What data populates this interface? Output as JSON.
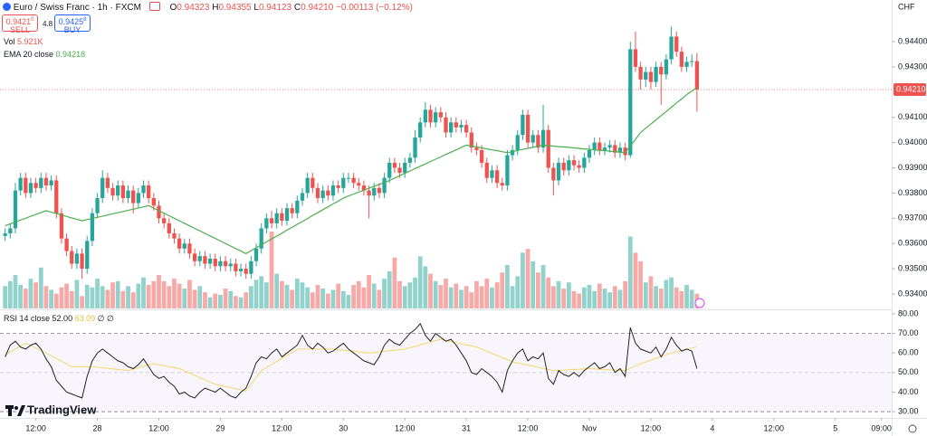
{
  "chart_data": {
    "type": "candlestick",
    "title": "Euro / Swiss Franc · 1h · FXCM",
    "currency": "CHF",
    "ohlc_legend": [
      {
        "key": "O",
        "value": "0.94323"
      },
      {
        "key": "H",
        "value": "0.94355"
      },
      {
        "key": "L",
        "value": "0.94123"
      },
      {
        "key": "C",
        "value": "0.94210"
      }
    ],
    "change_label": "−0.00113 (−0.12%)",
    "up_color": "#26a69a",
    "down_color": "#ef5350",
    "xlim": [
      -1,
      173
    ],
    "xticks": [
      {
        "value": 6,
        "label": "12:00"
      },
      {
        "value": 18,
        "label": "28"
      },
      {
        "value": 30,
        "label": "12:00"
      },
      {
        "value": 42,
        "label": "29"
      },
      {
        "value": 54,
        "label": "12:00"
      },
      {
        "value": 66,
        "label": "30"
      },
      {
        "value": 78,
        "label": "12:00"
      },
      {
        "value": 90,
        "label": "31"
      },
      {
        "value": 102,
        "label": "12:00"
      },
      {
        "value": 114,
        "label": "Nov"
      },
      {
        "value": 126,
        "label": "12:00"
      },
      {
        "value": 138,
        "label": "4"
      },
      {
        "value": 150,
        "label": "12:00"
      },
      {
        "value": 162,
        "label": "5"
      },
      {
        "value": 171,
        "label": "09:00"
      }
    ],
    "ylim": [
      0.93339,
      0.94565
    ],
    "yticks": [
      {
        "value": 0.934,
        "label": "0.93400"
      },
      {
        "value": 0.935,
        "label": "0.93500"
      },
      {
        "value": 0.936,
        "label": "0.93600"
      },
      {
        "value": 0.937,
        "label": "0.93700"
      },
      {
        "value": 0.938,
        "label": "0.93800"
      },
      {
        "value": 0.939,
        "label": "0.93900"
      },
      {
        "value": 0.94,
        "label": "0.94000"
      },
      {
        "value": 0.941,
        "label": "0.94100"
      },
      {
        "value": 0.943,
        "label": "0.94300"
      },
      {
        "value": 0.944,
        "label": "0.94400"
      }
    ],
    "open": [
      0.9363,
      0.9364,
      0.9366,
      0.9381,
      0.9386,
      0.938,
      0.9384,
      0.9382,
      0.9386,
      0.9383,
      0.9385,
      0.9372,
      0.9362,
      0.9357,
      0.9352,
      0.9356,
      0.935,
      0.9361,
      0.9372,
      0.9378,
      0.9386,
      0.9382,
      0.9379,
      0.9383,
      0.9378,
      0.9381,
      0.9376,
      0.938,
      0.9383,
      0.9378,
      0.9375,
      0.937,
      0.9368,
      0.9364,
      0.9362,
      0.9358,
      0.936,
      0.9356,
      0.9353,
      0.9355,
      0.9352,
      0.9354,
      0.9351,
      0.9353,
      0.9351,
      0.9352,
      0.9349,
      0.935,
      0.9348,
      0.9353,
      0.9358,
      0.9366,
      0.937,
      0.9368,
      0.9372,
      0.9369,
      0.9374,
      0.9372,
      0.9377,
      0.938,
      0.9386,
      0.9382,
      0.9378,
      0.9381,
      0.9379,
      0.9383,
      0.9382,
      0.9386,
      0.9386,
      0.9384,
      0.9383,
      0.9381,
      0.9379,
      0.9382,
      0.938,
      0.9386,
      0.9392,
      0.939,
      0.9388,
      0.9392,
      0.9394,
      0.9402,
      0.9408,
      0.9413,
      0.9408,
      0.9412,
      0.941,
      0.9404,
      0.9408,
      0.9406,
      0.9407,
      0.9404,
      0.9398,
      0.9397,
      0.9392,
      0.9386,
      0.9389,
      0.9384,
      0.9383,
      0.9395,
      0.9397,
      0.9403,
      0.9411,
      0.94,
      0.9403,
      0.9398,
      0.9405,
      0.939,
      0.9385,
      0.9392,
      0.9389,
      0.9393,
      0.9391,
      0.939,
      0.9394,
      0.9397,
      0.94,
      0.9397,
      0.9398,
      0.9399,
      0.9396,
      0.9398,
      0.9395,
      0.9437,
      0.943,
      0.9425,
      0.9428,
      0.9424,
      0.943,
      0.9427,
      0.9433,
      0.9442,
      0.9436,
      0.943,
      0.9432,
      0.94323
    ],
    "high": [
      0.9366,
      0.9368,
      0.9384,
      0.9388,
      0.9388,
      0.9386,
      0.9386,
      0.9388,
      0.9388,
      0.9387,
      0.9387,
      0.9374,
      0.9364,
      0.9359,
      0.9358,
      0.9358,
      0.9363,
      0.9374,
      0.938,
      0.9389,
      0.9388,
      0.9384,
      0.9385,
      0.9385,
      0.9383,
      0.9383,
      0.9382,
      0.9385,
      0.9385,
      0.938,
      0.9377,
      0.9372,
      0.937,
      0.9366,
      0.9364,
      0.9362,
      0.9362,
      0.9358,
      0.9357,
      0.9357,
      0.9356,
      0.9356,
      0.9355,
      0.9355,
      0.9354,
      0.9354,
      0.9352,
      0.9352,
      0.9355,
      0.936,
      0.9368,
      0.9372,
      0.9373,
      0.9374,
      0.9374,
      0.9376,
      0.9376,
      0.9379,
      0.9382,
      0.9388,
      0.9388,
      0.9384,
      0.9383,
      0.9383,
      0.9385,
      0.9385,
      0.9388,
      0.9388,
      0.9388,
      0.9386,
      0.9385,
      0.9383,
      0.9384,
      0.9384,
      0.9388,
      0.9394,
      0.9394,
      0.9392,
      0.9394,
      0.9396,
      0.9405,
      0.941,
      0.9416,
      0.9415,
      0.9414,
      0.9414,
      0.9412,
      0.941,
      0.941,
      0.9409,
      0.9409,
      0.9406,
      0.94,
      0.9399,
      0.9394,
      0.9391,
      0.9391,
      0.9386,
      0.9397,
      0.9399,
      0.9405,
      0.9413,
      0.9413,
      0.9405,
      0.9405,
      0.9415,
      0.9407,
      0.9392,
      0.9394,
      0.9394,
      0.9395,
      0.9395,
      0.9393,
      0.9396,
      0.9399,
      0.9402,
      0.9402,
      0.94,
      0.9401,
      0.9401,
      0.94,
      0.94,
      0.944,
      0.9444,
      0.9432,
      0.943,
      0.943,
      0.9432,
      0.9432,
      0.9435,
      0.9446,
      0.9444,
      0.9438,
      0.9434,
      0.9435,
      0.94355
    ],
    "low": [
      0.9361,
      0.9362,
      0.9364,
      0.9379,
      0.9378,
      0.9378,
      0.938,
      0.938,
      0.9381,
      0.9381,
      0.937,
      0.936,
      0.9355,
      0.935,
      0.935,
      0.9346,
      0.9348,
      0.9359,
      0.937,
      0.9376,
      0.938,
      0.9377,
      0.9377,
      0.9376,
      0.9376,
      0.9372,
      0.9374,
      0.9378,
      0.9376,
      0.9373,
      0.9368,
      0.9366,
      0.9362,
      0.936,
      0.9356,
      0.9356,
      0.9354,
      0.9351,
      0.9351,
      0.935,
      0.935,
      0.9349,
      0.9349,
      0.9349,
      0.9349,
      0.9347,
      0.9347,
      0.9346,
      0.9346,
      0.9351,
      0.9356,
      0.9364,
      0.9366,
      0.9366,
      0.9367,
      0.9367,
      0.937,
      0.937,
      0.9375,
      0.9378,
      0.938,
      0.9376,
      0.9376,
      0.9377,
      0.9377,
      0.938,
      0.938,
      0.9384,
      0.9382,
      0.9381,
      0.9379,
      0.937,
      0.9377,
      0.9378,
      0.9378,
      0.9384,
      0.9388,
      0.9386,
      0.9386,
      0.939,
      0.9392,
      0.94,
      0.9406,
      0.9406,
      0.9406,
      0.9408,
      0.9402,
      0.9402,
      0.9404,
      0.9404,
      0.9402,
      0.9396,
      0.9395,
      0.939,
      0.9384,
      0.9384,
      0.9382,
      0.9381,
      0.9381,
      0.9393,
      0.9395,
      0.9401,
      0.9398,
      0.9398,
      0.9396,
      0.9396,
      0.9388,
      0.9379,
      0.9383,
      0.9387,
      0.9387,
      0.9389,
      0.9388,
      0.9388,
      0.9392,
      0.9395,
      0.9395,
      0.9395,
      0.9396,
      0.9394,
      0.9394,
      0.9393,
      0.9394,
      0.9428,
      0.9421,
      0.9422,
      0.9421,
      0.9422,
      0.9415,
      0.9425,
      0.9431,
      0.9434,
      0.9428,
      0.9428,
      0.943,
      0.94123
    ],
    "close": [
      0.9364,
      0.9366,
      0.9381,
      0.9386,
      0.938,
      0.9384,
      0.9382,
      0.9386,
      0.9383,
      0.9385,
      0.9372,
      0.9362,
      0.9357,
      0.9352,
      0.9356,
      0.935,
      0.9361,
      0.9372,
      0.9378,
      0.9386,
      0.9382,
      0.9379,
      0.9383,
      0.9378,
      0.9381,
      0.9376,
      0.938,
      0.9383,
      0.9378,
      0.9375,
      0.937,
      0.9368,
      0.9364,
      0.9362,
      0.9358,
      0.936,
      0.9356,
      0.9353,
      0.9355,
      0.9352,
      0.9354,
      0.9351,
      0.9353,
      0.9351,
      0.9352,
      0.9349,
      0.935,
      0.9348,
      0.9353,
      0.9358,
      0.9366,
      0.937,
      0.9368,
      0.9372,
      0.9369,
      0.9374,
      0.9372,
      0.9377,
      0.938,
      0.9386,
      0.9382,
      0.9378,
      0.9381,
      0.9379,
      0.9383,
      0.9382,
      0.9386,
      0.9386,
      0.9384,
      0.9383,
      0.9381,
      0.9379,
      0.9382,
      0.938,
      0.9386,
      0.9392,
      0.939,
      0.9388,
      0.9392,
      0.9394,
      0.9402,
      0.9408,
      0.9413,
      0.9408,
      0.9412,
      0.941,
      0.9404,
      0.9408,
      0.9406,
      0.9407,
      0.9404,
      0.9398,
      0.9397,
      0.9392,
      0.9386,
      0.9389,
      0.9384,
      0.9383,
      0.9395,
      0.9397,
      0.9403,
      0.9411,
      0.94,
      0.9403,
      0.9398,
      0.9405,
      0.939,
      0.9385,
      0.9392,
      0.9389,
      0.9393,
      0.9391,
      0.939,
      0.9394,
      0.9397,
      0.94,
      0.9397,
      0.9398,
      0.9399,
      0.9396,
      0.9398,
      0.9395,
      0.9437,
      0.943,
      0.9425,
      0.9428,
      0.9424,
      0.943,
      0.9427,
      0.9433,
      0.9442,
      0.9436,
      0.943,
      0.9432,
      0.94323,
      0.9421
    ],
    "volume": {
      "name": "Vol",
      "last_value_label": "5.921K",
      "up_color": "rgba(38,166,154,0.5)",
      "down_color": "rgba(239,83,80,0.5)",
      "values": [
        9000,
        11000,
        13500,
        9500,
        8000,
        12000,
        10500,
        16500,
        9000,
        7500,
        6000,
        8500,
        10000,
        7000,
        11500,
        5000,
        9500,
        8500,
        12000,
        9000,
        7500,
        10500,
        11000,
        7000,
        9000,
        6500,
        10000,
        12500,
        9500,
        11000,
        13500,
        11000,
        9000,
        12000,
        10000,
        8000,
        11500,
        7500,
        9000,
        6500,
        4500,
        6000,
        5500,
        8000,
        7000,
        5000,
        4500,
        6500,
        9000,
        11500,
        13000,
        10500,
        31000,
        14000,
        11000,
        9500,
        7500,
        12000,
        10500,
        8500,
        6500,
        9500,
        8000,
        6000,
        7500,
        10000,
        7000,
        5500,
        9500,
        11000,
        8500,
        13500,
        10000,
        7500,
        12000,
        15000,
        20500,
        11000,
        9000,
        10500,
        12500,
        21000,
        17000,
        14000,
        11000,
        9500,
        12000,
        8500,
        10000,
        7500,
        9000,
        6500,
        11000,
        9000,
        12000,
        8500,
        10500,
        14500,
        17500,
        9000,
        13000,
        22500,
        24000,
        19000,
        14500,
        17500,
        12500,
        9000,
        11000,
        8000,
        10500,
        7000,
        6000,
        8500,
        9500,
        7000,
        10000,
        8000,
        6500,
        9000,
        7500,
        11000,
        29000,
        22500,
        19000,
        10500,
        13000,
        9000,
        8000,
        11500,
        12500,
        8500,
        7000,
        9500,
        7500,
        5921
      ]
    },
    "ema": {
      "name": "EMA 20 close",
      "last_value_label": "0.94218",
      "color": "#4caf50",
      "values": [
        0.9367,
        0.93678,
        0.93685,
        0.93693,
        0.937,
        0.93708,
        0.93715,
        0.93723,
        0.9373,
        0.93724,
        0.93719,
        0.93713,
        0.93707,
        0.93701,
        0.93696,
        0.9369,
        0.93695,
        0.93699,
        0.93704,
        0.93708,
        0.93713,
        0.93718,
        0.93722,
        0.93727,
        0.93732,
        0.93736,
        0.93741,
        0.93745,
        0.9375,
        0.9374,
        0.9373,
        0.9372,
        0.9371,
        0.937,
        0.9369,
        0.9368,
        0.9367,
        0.9366,
        0.9365,
        0.9364,
        0.9363,
        0.9362,
        0.9361,
        0.936,
        0.9359,
        0.9358,
        0.9357,
        0.9356,
        0.93572,
        0.93583,
        0.93595,
        0.93606,
        0.93618,
        0.93629,
        0.93641,
        0.93653,
        0.93664,
        0.93676,
        0.93687,
        0.93699,
        0.93711,
        0.93722,
        0.93734,
        0.93745,
        0.93757,
        0.93768,
        0.9378,
        0.93788,
        0.93796,
        0.93804,
        0.93811,
        0.93819,
        0.93827,
        0.93834,
        0.93842,
        0.9385,
        0.93859,
        0.93869,
        0.93878,
        0.93887,
        0.93897,
        0.93906,
        0.93915,
        0.93925,
        0.93934,
        0.93943,
        0.93953,
        0.93962,
        0.93971,
        0.93981,
        0.9399,
        0.93986,
        0.93983,
        0.93979,
        0.93975,
        0.93971,
        0.93968,
        0.93964,
        0.9396,
        0.93964,
        0.93969,
        0.93973,
        0.93977,
        0.93981,
        0.93986,
        0.9399,
        0.93988,
        0.93986,
        0.93984,
        0.93983,
        0.93981,
        0.93979,
        0.93977,
        0.93975,
        0.93973,
        0.93971,
        0.93969,
        0.93968,
        0.93966,
        0.93964,
        0.93962,
        0.9396,
        0.93987,
        0.94013,
        0.9404,
        0.94057,
        0.94073,
        0.9409,
        0.94107,
        0.94123,
        0.9414,
        0.94157,
        0.94173,
        0.9419,
        0.94204,
        0.94218
      ]
    },
    "rsi": {
      "name": "RSI 14 close",
      "value_label": "52.00",
      "ma_label": "63.09",
      "extra_labels": [
        "∅",
        "∅"
      ],
      "color": "#222222",
      "ma_color": "#f5d76e",
      "ylim": [
        26.8,
        82.3
      ],
      "yticks": [
        {
          "value": 80,
          "label": "80.00"
        },
        {
          "value": 70,
          "label": "70.00"
        },
        {
          "value": 60,
          "label": "60.00"
        },
        {
          "value": 50,
          "label": "50.00"
        },
        {
          "value": 40,
          "label": "40.00"
        },
        {
          "value": 30,
          "label": "30.00"
        }
      ],
      "levels": [
        70,
        50,
        30
      ],
      "values": [
        58,
        64,
        66,
        63,
        62,
        64,
        65,
        62,
        57,
        53,
        46,
        43,
        40,
        39,
        38,
        37,
        48,
        56,
        60,
        62,
        60,
        58,
        56,
        55,
        53,
        52,
        54,
        57,
        53,
        49,
        47,
        48,
        45,
        43,
        39,
        40,
        38,
        37,
        40,
        42,
        41,
        40,
        42,
        40,
        38,
        37,
        40,
        42,
        48,
        55,
        58,
        57,
        60,
        62,
        58,
        60,
        62,
        64,
        69,
        64,
        62,
        65,
        63,
        60,
        61,
        63,
        65,
        62,
        60,
        58,
        56,
        55,
        54,
        58,
        64,
        67,
        65,
        64,
        67,
        70,
        72,
        75,
        69,
        66,
        70,
        68,
        66,
        67,
        64,
        60,
        56,
        50,
        49,
        52,
        50,
        48,
        45,
        40,
        51,
        56,
        60,
        62,
        56,
        58,
        57,
        60,
        47,
        44,
        51,
        49,
        48,
        50,
        48,
        51,
        53,
        55,
        52,
        53,
        55,
        50,
        52,
        48,
        73,
        65,
        62,
        61,
        60,
        63,
        58,
        62,
        68,
        64,
        61,
        62,
        61,
        52
      ],
      "ma_values": [
        59,
        60.5,
        62,
        63.5,
        65,
        63.8,
        62.5,
        61.3,
        60,
        58.6,
        57.2,
        55.8,
        54.4,
        53,
        53,
        53,
        53,
        53,
        52.7,
        52.4,
        52.1,
        51.9,
        51.6,
        51.3,
        51,
        51.7,
        52.4,
        53.1,
        53.8,
        54.5,
        54,
        53.5,
        53,
        52.5,
        52,
        50.9,
        49.7,
        48.6,
        47.4,
        46.3,
        45.1,
        44,
        43.4,
        42.9,
        42.3,
        41.7,
        41.2,
        40.6,
        44.1,
        47.5,
        51,
        52.6,
        54.1,
        55.7,
        57.3,
        58.9,
        60.4,
        62,
        62,
        62,
        62,
        62,
        62,
        62,
        62,
        61.7,
        61.4,
        61.1,
        60.9,
        60.6,
        60.3,
        60,
        60.3,
        60.6,
        60.9,
        61.1,
        61.4,
        61.7,
        62,
        62.7,
        63.4,
        64.1,
        64.9,
        65.6,
        66.3,
        67,
        66.4,
        65.9,
        65.3,
        64.7,
        64.1,
        63.6,
        63,
        61.9,
        60.9,
        59.8,
        58.7,
        57.6,
        56.6,
        55.5,
        54.9,
        54.4,
        53.8,
        53.3,
        52.7,
        52.1,
        51.6,
        51,
        51.1,
        51.3,
        51.4,
        51.6,
        51.7,
        51.9,
        52,
        51.9,
        51.7,
        51.6,
        51.4,
        51.3,
        51.1,
        51,
        52.2,
        53.3,
        54.5,
        55.4,
        56.3,
        57.3,
        58.2,
        59.1,
        60,
        60.6,
        61.2,
        61.9,
        62.5,
        63.09
      ]
    }
  },
  "trade_panel": {
    "sell_price": "0.9421",
    "sell_pip": "0",
    "sell_label": "SELL",
    "spread": "4.8",
    "buy_price": "0.9425",
    "buy_pip": "8",
    "buy_label": "BUY"
  },
  "brand": "TradingView"
}
